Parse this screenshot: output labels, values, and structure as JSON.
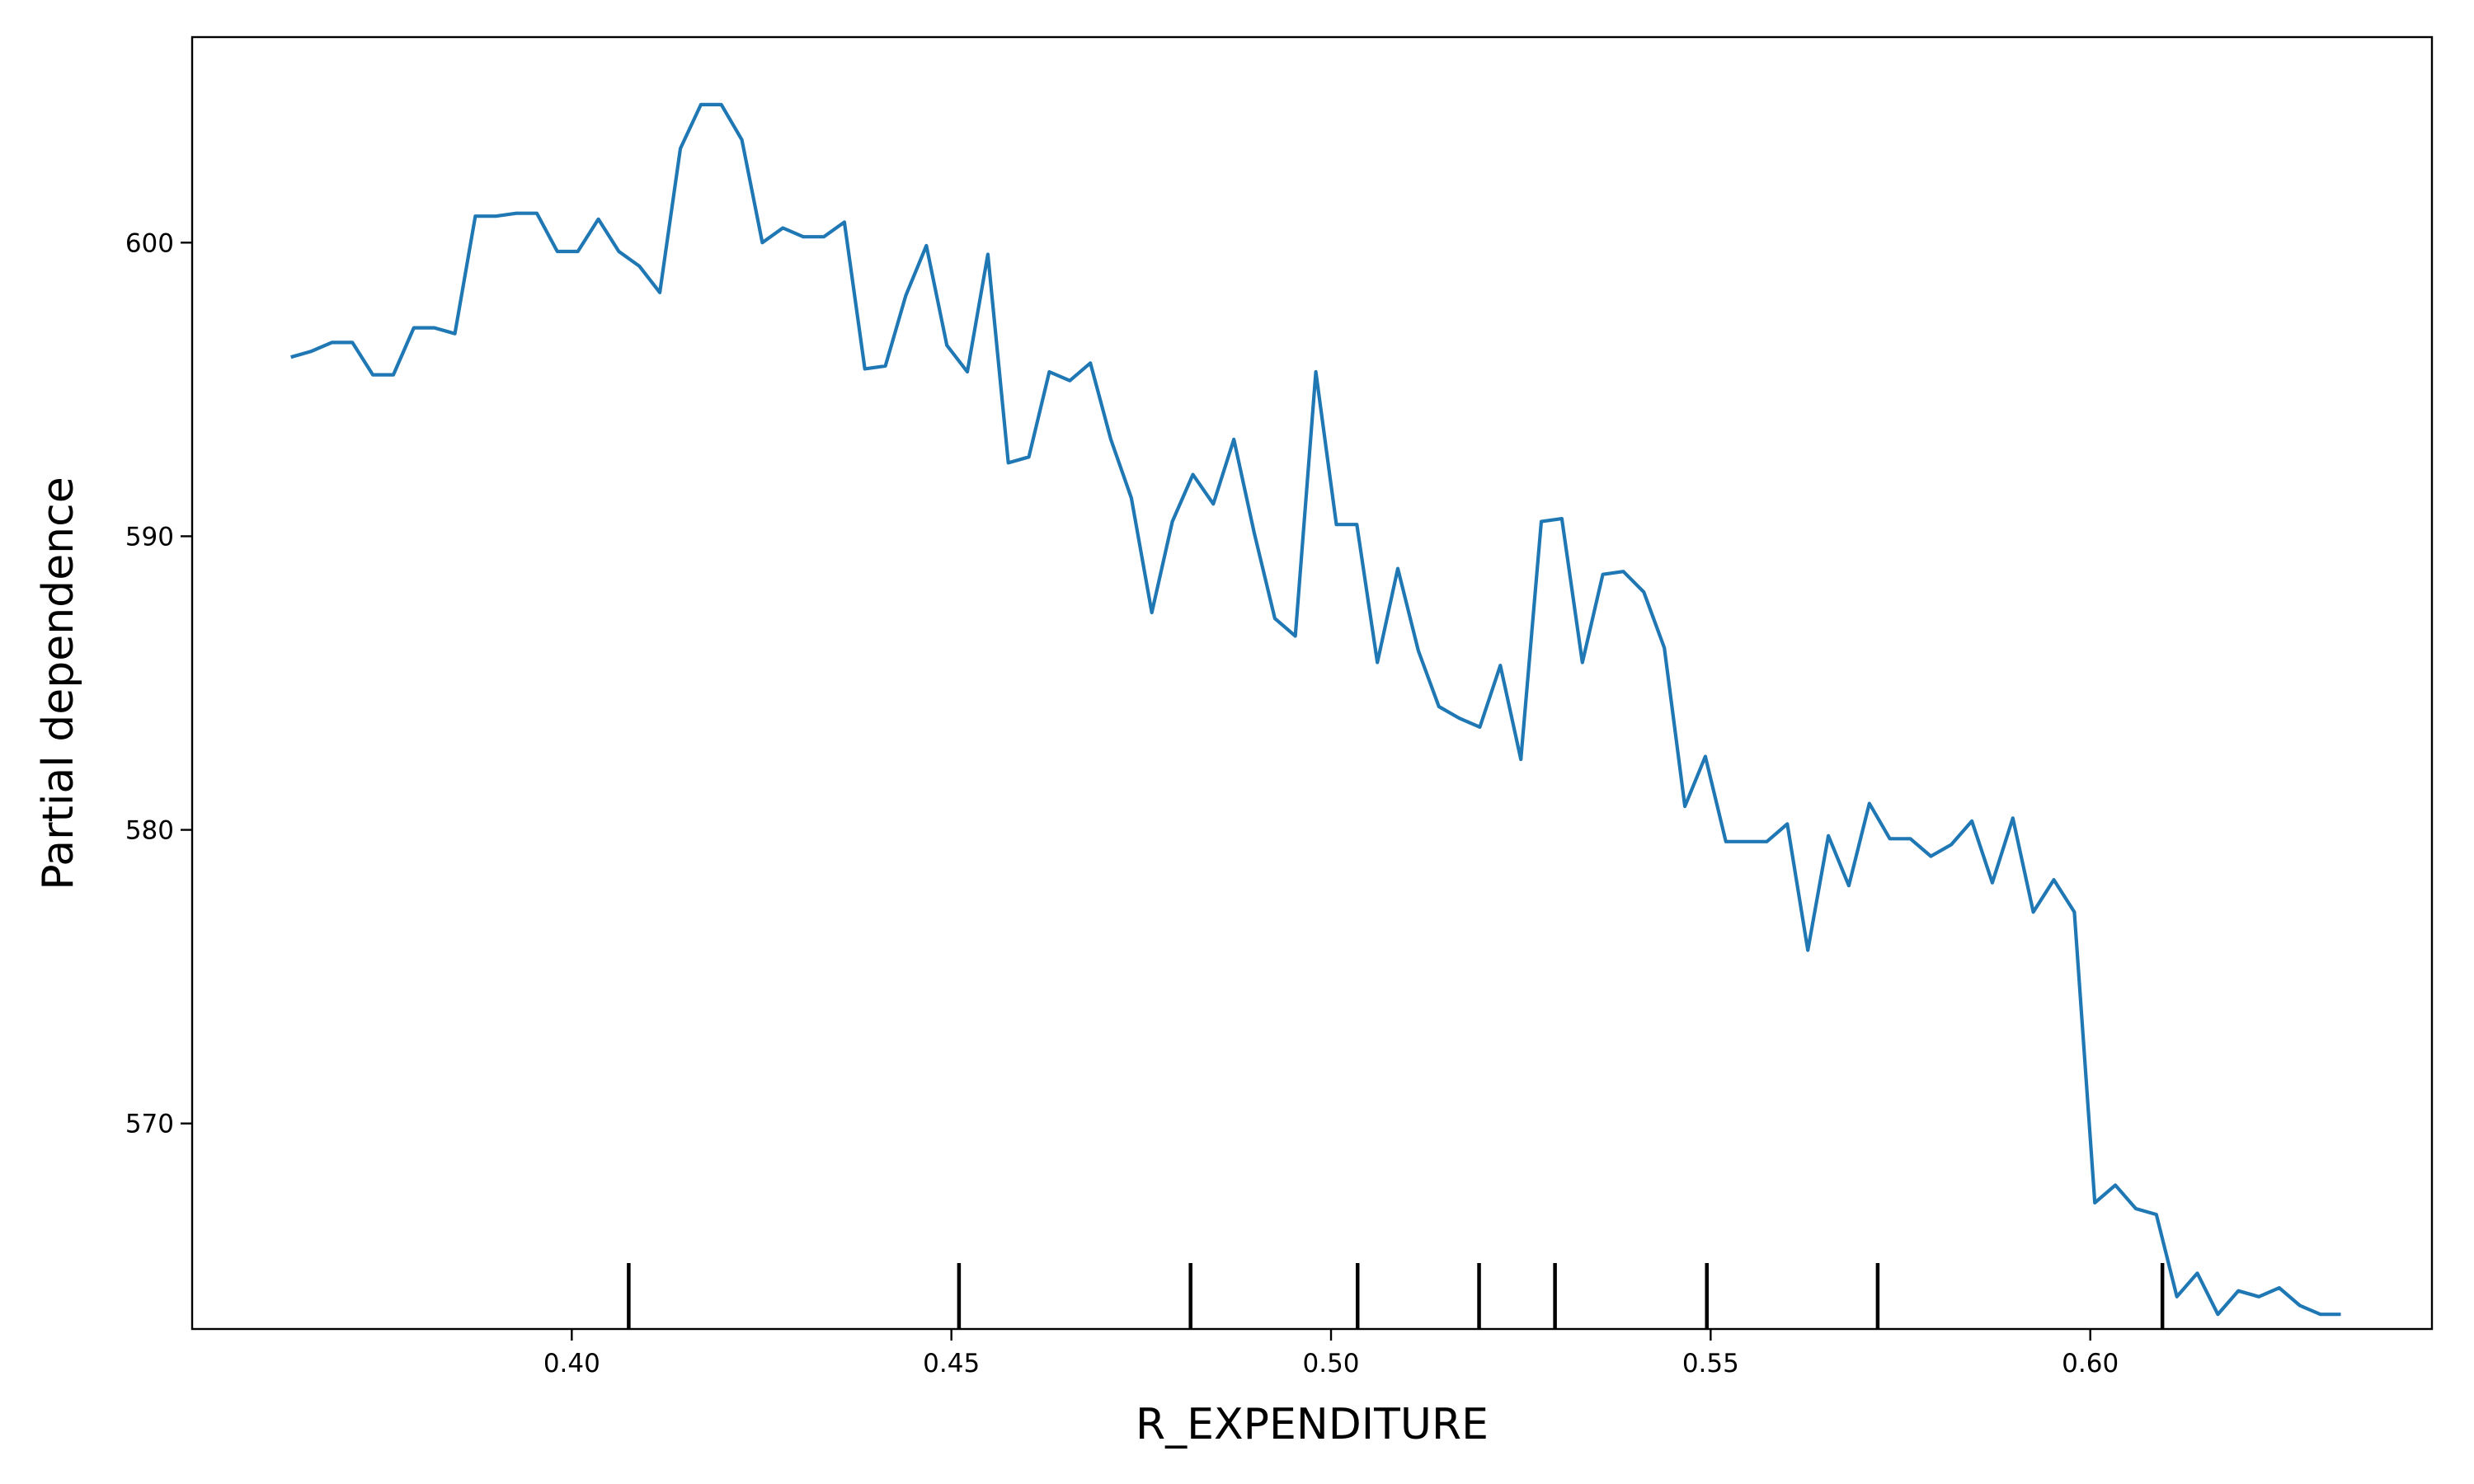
{
  "chart_data": {
    "type": "line",
    "title": "",
    "xlabel": "R_EXPENDITURE",
    "ylabel": "Partial dependence",
    "xlim": [
      0.35,
      0.645
    ],
    "ylim": [
      563.0,
      607.0
    ],
    "xticks": [
      0.4,
      0.45,
      0.5,
      0.55,
      0.6
    ],
    "xtick_labels": [
      "0.40",
      "0.45",
      "0.50",
      "0.55",
      "0.60"
    ],
    "yticks": [
      570,
      580,
      590,
      600
    ],
    "ytick_labels": [
      "570",
      "580",
      "590",
      "600"
    ],
    "grid": false,
    "line_color": "#1f77b4",
    "rug_color": "#000000",
    "series": [
      {
        "x": [
          0.363,
          0.3657,
          0.3684,
          0.3711,
          0.3738,
          0.3765,
          0.3792,
          0.3819,
          0.3846,
          0.3873,
          0.39,
          0.3927,
          0.3954,
          0.3981,
          0.4008,
          0.4035,
          0.4062,
          0.4089,
          0.4116,
          0.4143,
          0.417,
          0.4197,
          0.4224,
          0.4251,
          0.4278,
          0.4305,
          0.4332,
          0.4359,
          0.4386,
          0.4413,
          0.444,
          0.4467,
          0.4494,
          0.4521,
          0.4548,
          0.4575,
          0.4602,
          0.4629,
          0.4656,
          0.4683,
          0.471,
          0.4737,
          0.4764,
          0.4791,
          0.4818,
          0.4845,
          0.4872,
          0.4899,
          0.4926,
          0.4953,
          0.498,
          0.5007,
          0.5034,
          0.5061,
          0.5088,
          0.5115,
          0.5142,
          0.5169,
          0.5196,
          0.5223,
          0.525,
          0.5277,
          0.5304,
          0.5331,
          0.5358,
          0.5385,
          0.5412,
          0.5439,
          0.5466,
          0.5493,
          0.552,
          0.5547,
          0.5574,
          0.5601,
          0.5628,
          0.5655,
          0.5682,
          0.5709,
          0.5736,
          0.5763,
          0.579,
          0.5817,
          0.5844,
          0.5871,
          0.5898,
          0.5925,
          0.5952,
          0.5979,
          0.6006,
          0.6033,
          0.606,
          0.6087,
          0.6114,
          0.6141,
          0.6168,
          0.6195,
          0.6222,
          0.6249,
          0.6276,
          0.6303,
          0.633
        ],
        "y": [
          596.1,
          596.3,
          596.6,
          596.6,
          595.5,
          595.5,
          597.1,
          597.1,
          596.9,
          600.9,
          600.9,
          601.0,
          601.0,
          599.7,
          599.7,
          600.8,
          599.7,
          599.2,
          598.3,
          603.2,
          604.7,
          604.7,
          603.5,
          600.0,
          600.5,
          600.2,
          600.2,
          600.7,
          595.7,
          595.8,
          598.2,
          599.9,
          596.5,
          595.6,
          599.6,
          592.5,
          592.7,
          595.6,
          595.3,
          595.9,
          593.3,
          591.3,
          587.4,
          590.5,
          592.1,
          591.1,
          593.3,
          590.1,
          587.2,
          586.6,
          595.6,
          590.4,
          590.4,
          585.7,
          588.9,
          586.1,
          584.2,
          583.8,
          583.5,
          585.6,
          582.4,
          590.5,
          590.6,
          585.7,
          588.7,
          588.8,
          588.1,
          586.2,
          580.8,
          582.5,
          579.6,
          579.6,
          579.6,
          580.2,
          575.9,
          579.8,
          578.1,
          580.9,
          579.7,
          579.7,
          579.1,
          579.5,
          580.3,
          578.2,
          580.4,
          577.2,
          578.3,
          577.2,
          567.3,
          567.9,
          567.1,
          566.9,
          564.1,
          564.9,
          563.5,
          564.3,
          564.1,
          564.4,
          563.8,
          563.5,
          563.5
        ]
      }
    ],
    "rug": [
      0.4075,
      0.451,
      0.4815,
      0.5035,
      0.5195,
      0.5295,
      0.5495,
      0.572,
      0.6095
    ]
  }
}
